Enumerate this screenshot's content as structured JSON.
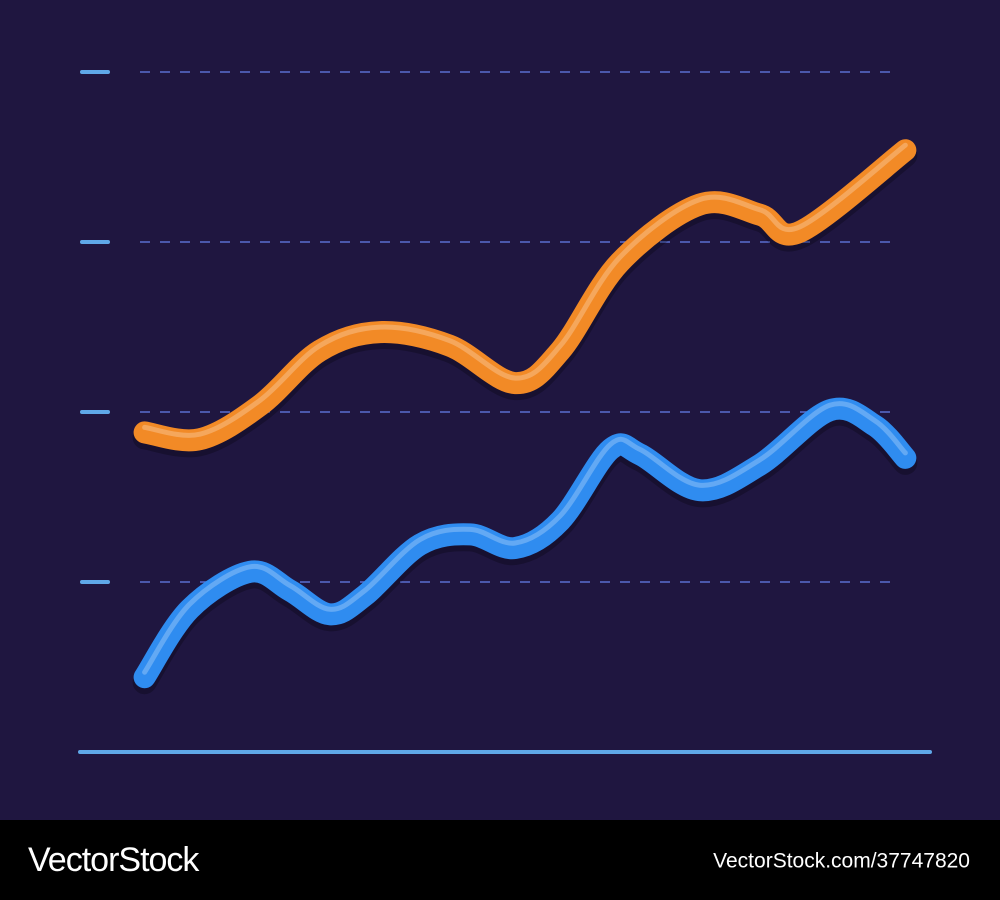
{
  "chart_data": {
    "type": "line",
    "xlim": [
      0,
      100
    ],
    "ylim": [
      0,
      4
    ],
    "yticks": [
      1,
      2,
      3,
      4
    ],
    "grid": true,
    "series": [
      {
        "color": "#f28a26",
        "x": [
          7.6,
          14.1,
          21.2,
          28.2,
          35.3,
          43.5,
          51.2,
          56.5,
          63.5,
          72.9,
          80,
          84.7,
          97.1
        ],
        "values": [
          1.88,
          1.84,
          2.04,
          2.36,
          2.47,
          2.39,
          2.17,
          2.36,
          2.88,
          3.22,
          3.16,
          3.06,
          3.54
        ]
      },
      {
        "color": "#2f8cf0",
        "x": [
          7.6,
          12.9,
          20,
          24.7,
          29.4,
          33.5,
          40,
          45.9,
          51.2,
          56.5,
          62.4,
          65.9,
          72.9,
          80,
          88.2,
          93.5,
          97.1
        ],
        "values": [
          0.44,
          0.84,
          1.06,
          0.95,
          0.81,
          0.92,
          1.22,
          1.28,
          1.2,
          1.36,
          1.78,
          1.75,
          1.54,
          1.69,
          2.01,
          1.92,
          1.73
        ]
      }
    ]
  },
  "footer": {
    "brand": "VectorStock",
    "id": "VectorStock.com/37747820"
  }
}
